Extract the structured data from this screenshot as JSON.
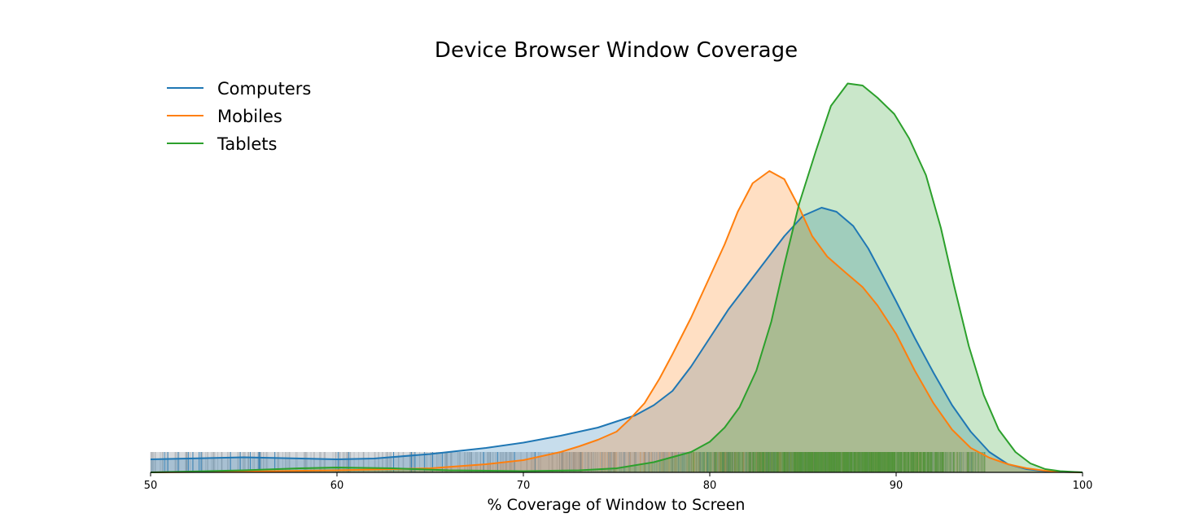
{
  "chart_data": {
    "type": "area",
    "title": "Device Browser Window Coverage",
    "xlabel": "% Coverage of Window to Screen",
    "ylabel": "",
    "xlim": [
      50,
      100
    ],
    "xticks": [
      50,
      60,
      70,
      80,
      90,
      100
    ],
    "grid": false,
    "legend_position": "upper left",
    "rug": true,
    "series": [
      {
        "name": "Computers",
        "color": "#1f77b4",
        "x": [
          50,
          55,
          60,
          62,
          65,
          68,
          70,
          72,
          74,
          75,
          76,
          77,
          78,
          79,
          80,
          81,
          82,
          83,
          84,
          85,
          86,
          86.8,
          87.7,
          88.5,
          89.2,
          90,
          91,
          92,
          93,
          94,
          95,
          96,
          97,
          98,
          99,
          100
        ],
        "y": [
          0.032,
          0.037,
          0.032,
          0.034,
          0.045,
          0.06,
          0.073,
          0.09,
          0.11,
          0.125,
          0.14,
          0.165,
          0.2,
          0.26,
          0.33,
          0.4,
          0.46,
          0.52,
          0.58,
          0.63,
          0.65,
          0.64,
          0.605,
          0.55,
          0.49,
          0.42,
          0.33,
          0.245,
          0.165,
          0.1,
          0.05,
          0.02,
          0.008,
          0.003,
          0.001,
          0
        ]
      },
      {
        "name": "Mobiles",
        "color": "#ff7f0e",
        "x": [
          50,
          55,
          60,
          65,
          68,
          70,
          72,
          73,
          74,
          75,
          75.7,
          76.5,
          77.3,
          78,
          79,
          80,
          80.8,
          81.5,
          82.3,
          83.2,
          84,
          84.8,
          85.5,
          86.3,
          87.3,
          88.2,
          89,
          90,
          91,
          92,
          93,
          94,
          95,
          96,
          97,
          98,
          99,
          100
        ],
        "y": [
          0,
          0.002,
          0.005,
          0.01,
          0.02,
          0.03,
          0.05,
          0.064,
          0.08,
          0.1,
          0.13,
          0.17,
          0.23,
          0.29,
          0.38,
          0.48,
          0.56,
          0.64,
          0.71,
          0.74,
          0.72,
          0.65,
          0.58,
          0.53,
          0.49,
          0.455,
          0.41,
          0.34,
          0.25,
          0.17,
          0.105,
          0.06,
          0.036,
          0.02,
          0.01,
          0.004,
          0.001,
          0
        ]
      },
      {
        "name": "Tablets",
        "color": "#2ca02c",
        "x": [
          50,
          55,
          58,
          60,
          63,
          66,
          70,
          73,
          75,
          77,
          79,
          80,
          80.8,
          81.6,
          82.5,
          83.3,
          84,
          84.8,
          85.7,
          86.5,
          87.4,
          88.2,
          89,
          89.9,
          90.7,
          91.6,
          92.4,
          93.1,
          93.9,
          94.7,
          95.5,
          96.4,
          97.2,
          98,
          98.8,
          100
        ],
        "y": [
          0,
          0.005,
          0.01,
          0.012,
          0.01,
          0.005,
          0.003,
          0.005,
          0.01,
          0.025,
          0.05,
          0.075,
          0.11,
          0.16,
          0.25,
          0.37,
          0.51,
          0.66,
          0.79,
          0.9,
          0.955,
          0.95,
          0.92,
          0.88,
          0.82,
          0.73,
          0.6,
          0.46,
          0.31,
          0.19,
          0.105,
          0.05,
          0.022,
          0.008,
          0.003,
          0
        ]
      }
    ]
  },
  "legend": {
    "items": [
      {
        "label": "Computers",
        "color": "#1f77b4"
      },
      {
        "label": "Mobiles",
        "color": "#ff7f0e"
      },
      {
        "label": "Tablets",
        "color": "#2ca02c"
      }
    ]
  },
  "axis": {
    "x_ticks": [
      "50",
      "60",
      "70",
      "80",
      "90",
      "100"
    ]
  }
}
